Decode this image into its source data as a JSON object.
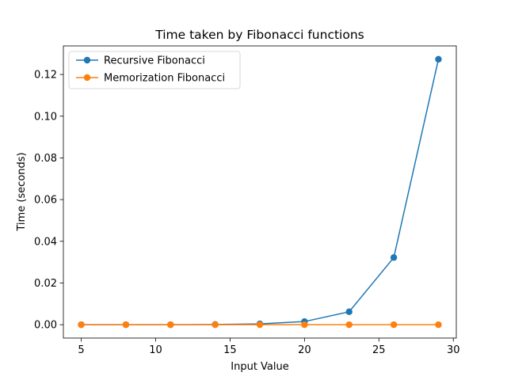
{
  "chart_data": {
    "type": "line",
    "title": "Time taken by Fibonacci functions",
    "xlabel": "Input Value",
    "ylabel": "Time (seconds)",
    "x": [
      5,
      8,
      11,
      14,
      17,
      20,
      23,
      26,
      29
    ],
    "xlim": [
      3.8,
      30.2
    ],
    "ylim": [
      -0.0064,
      0.1337
    ],
    "xticks": [
      5,
      10,
      15,
      20,
      25,
      30
    ],
    "yticks": [
      0.0,
      0.02,
      0.04,
      0.06,
      0.08,
      0.1,
      0.12
    ],
    "ytick_format": 2,
    "grid": false,
    "legend_position": "top-left",
    "series": [
      {
        "name": "Recursive Fibonacci",
        "color": "#1f77b4",
        "values": [
          0.0,
          0.0,
          0.0,
          0.0001,
          0.0004,
          0.0015,
          0.0062,
          0.0322,
          0.1273
        ]
      },
      {
        "name": "Memorization Fibonacci",
        "color": "#ff7f0e",
        "values": [
          0.0,
          0.0,
          0.0,
          0.0,
          0.0,
          0.0,
          0.0,
          0.0,
          0.0
        ]
      }
    ]
  }
}
